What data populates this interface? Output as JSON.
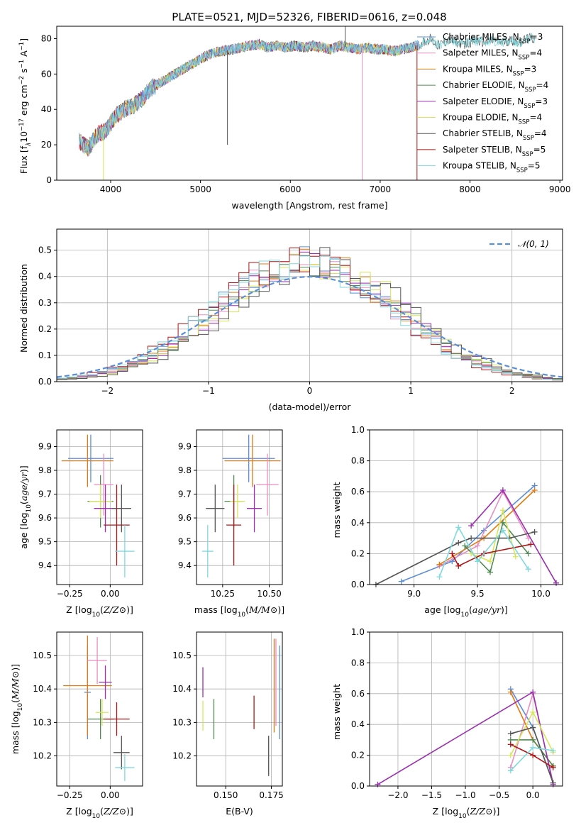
{
  "colors": {
    "Chabrier MILES": "#5b8ed8",
    "Salpeter MILES": "#e88fc1",
    "Kroupa MILES": "#e07b14",
    "Chabrier ELODIE": "#4f8a52",
    "Salpeter ELODIE": "#9b2fb0",
    "Kroupa ELODIE": "#d7e65a",
    "Chabrier STELIB": "#555555",
    "Salpeter STELIB": "#b01414",
    "Kroupa STELIB": "#7fd9de"
  },
  "chart_data": [
    {
      "id": "spectrum",
      "type": "line",
      "title": "PLATE=0521, MJD=52326, FIBERID=0616, z=0.048",
      "xlabel": "wavelength [Angstrom, rest frame]",
      "ylabel_parts": [
        "Flux [f",
        "λ",
        "10",
        "−17",
        " erg cm",
        "−2",
        " s",
        "−1",
        " A",
        "−1",
        "]"
      ],
      "xlim": [
        3400,
        9030
      ],
      "ylim": [
        0,
        87
      ],
      "xticks": [
        "4000",
        "5000",
        "6000",
        "7000",
        "8000",
        "9000"
      ],
      "yticks": [
        "0",
        "20",
        "40",
        "60",
        "80"
      ],
      "legend": [
        {
          "base": "Chabrier MILES, N",
          "sub": "SSP",
          "tail": "=3",
          "key": "Chabrier MILES"
        },
        {
          "base": "Salpeter MILES, N",
          "sub": "SSP",
          "tail": "=4",
          "key": "Salpeter MILES"
        },
        {
          "base": "Kroupa MILES, N",
          "sub": "SSP",
          "tail": "=3",
          "key": "Kroupa MILES"
        },
        {
          "base": "Chabrier ELODIE, N",
          "sub": "SSP",
          "tail": "=4",
          "key": "Chabrier ELODIE"
        },
        {
          "base": "Salpeter ELODIE, N",
          "sub": "SSP",
          "tail": "=3",
          "key": "Salpeter ELODIE"
        },
        {
          "base": "Kroupa ELODIE, N",
          "sub": "SSP",
          "tail": "=4",
          "key": "Kroupa ELODIE"
        },
        {
          "base": "Chabrier STELIB, N",
          "sub": "SSP",
          "tail": "=4",
          "key": "Chabrier STELIB"
        },
        {
          "base": "Salpeter STELIB, N",
          "sub": "SSP",
          "tail": "=5",
          "key": "Salpeter STELIB"
        },
        {
          "base": "Kroupa STELIB, N",
          "sub": "SSP",
          "tail": "=5",
          "key": "Kroupa STELIB"
        }
      ],
      "legend_position": "right",
      "continuum": [
        [
          3650,
          22
        ],
        [
          3750,
          18
        ],
        [
          3850,
          26
        ],
        [
          3950,
          28
        ],
        [
          4050,
          36
        ],
        [
          4150,
          40
        ],
        [
          4250,
          42
        ],
        [
          4350,
          46
        ],
        [
          4450,
          52
        ],
        [
          4550,
          55
        ],
        [
          4650,
          58
        ],
        [
          4750,
          61
        ],
        [
          4850,
          64
        ],
        [
          4950,
          67
        ],
        [
          5050,
          70
        ],
        [
          5150,
          72
        ],
        [
          5250,
          73
        ],
        [
          5350,
          74
        ],
        [
          5450,
          75
        ],
        [
          5550,
          76
        ],
        [
          5650,
          77
        ],
        [
          5750,
          75
        ],
        [
          5850,
          76
        ],
        [
          5950,
          75
        ],
        [
          6050,
          76
        ],
        [
          6150,
          75
        ],
        [
          6250,
          76
        ],
        [
          6350,
          75
        ],
        [
          6450,
          74
        ],
        [
          6550,
          76
        ],
        [
          6650,
          75
        ],
        [
          6750,
          74
        ],
        [
          6850,
          75
        ],
        [
          6950,
          74
        ],
        [
          7050,
          74
        ],
        [
          7150,
          73
        ],
        [
          7250,
          74
        ],
        [
          7350,
          75
        ],
        [
          7450,
          77
        ],
        [
          7550,
          80
        ],
        [
          7650,
          76
        ],
        [
          7750,
          79
        ],
        [
          7850,
          78
        ],
        [
          7950,
          77
        ],
        [
          8050,
          79
        ],
        [
          8150,
          78
        ],
        [
          8250,
          79
        ],
        [
          8350,
          78
        ],
        [
          8450,
          79
        ],
        [
          8550,
          78
        ],
        [
          8650,
          80
        ],
        [
          8750,
          80
        ]
      ],
      "drops": [
        {
          "x": 3920,
          "key": "Kroupa ELODIE",
          "y": 0
        },
        {
          "x": 5300,
          "key": "Chabrier STELIB",
          "y": 20
        },
        {
          "x": 6800,
          "key": "Salpeter MILES",
          "y": 0
        },
        {
          "x": 7410,
          "key": "Salpeter STELIB",
          "y": 0
        },
        {
          "x": 6610,
          "key": "Chabrier STELIB",
          "y": 87
        }
      ]
    },
    {
      "id": "residuals",
      "type": "histogram",
      "xlabel": "(data-model)/error",
      "ylabel": "Normed distribution",
      "xlim": [
        -2.5,
        2.5
      ],
      "ylim": [
        0,
        0.58
      ],
      "xticks": [
        "−2",
        "−1",
        "0",
        "1",
        "2"
      ],
      "yticks": [
        "0.0",
        "0.1",
        "0.2",
        "0.3",
        "0.4",
        "0.5"
      ],
      "legend": "𝒩(0, 1)",
      "legend_position": "top-right"
    },
    {
      "id": "age_vs_Z",
      "type": "errorbar",
      "xlabel": "Z [log10(Z/Z⊙)]",
      "ylabel": "age  [log10(age/yr)]",
      "xlim": [
        -0.33,
        0.2
      ],
      "ylim": [
        9.32,
        9.97
      ],
      "xticks": [
        -0.25,
        0.0
      ],
      "xticklabels": [
        "−0.25",
        "0.00"
      ],
      "yticks": [
        9.4,
        9.5,
        9.6,
        9.7,
        9.8,
        9.9
      ],
      "yticklabels": [
        "9.4",
        "9.5",
        "9.6",
        "9.7",
        "9.8",
        "9.9"
      ],
      "points": [
        {
          "key": "Chabrier MILES",
          "x": -0.12,
          "y": 9.85,
          "xerr": 0.14,
          "yerr": 0.1
        },
        {
          "key": "Kroupa MILES",
          "x": -0.14,
          "y": 9.84,
          "xerr": 0.16,
          "yerr": 0.11
        },
        {
          "key": "Salpeter MILES",
          "x": -0.04,
          "y": 9.74,
          "xerr": 0.06,
          "yerr": 0.13
        },
        {
          "key": "Chabrier ELODIE",
          "x": -0.06,
          "y": 9.67,
          "xerr": 0.08,
          "yerr": 0.11
        },
        {
          "key": "Kroupa ELODIE",
          "x": -0.06,
          "y": 9.67,
          "xerr": 0.07,
          "yerr": 0.07
        },
        {
          "key": "Salpeter ELODIE",
          "x": -0.03,
          "y": 9.64,
          "xerr": 0.07,
          "yerr": 0.1
        },
        {
          "key": "Chabrier STELIB",
          "x": 0.07,
          "y": 9.64,
          "xerr": 0.06,
          "yerr": 0.1
        },
        {
          "key": "Salpeter STELIB",
          "x": 0.04,
          "y": 9.57,
          "xerr": 0.08,
          "yerr": 0.17
        },
        {
          "key": "Kroupa STELIB",
          "x": 0.09,
          "y": 9.46,
          "xerr": 0.06,
          "yerr": 0.11
        }
      ]
    },
    {
      "id": "age_vs_mass",
      "type": "errorbar",
      "xlabel": "mass [log10(M/M⊙)]",
      "ylabel": "",
      "xlim": [
        10.11,
        10.57
      ],
      "ylim": [
        9.32,
        9.97
      ],
      "xticks": [
        10.25,
        10.5
      ],
      "xticklabels": [
        "10.25",
        "10.50"
      ],
      "yticks": [
        9.4,
        9.5,
        9.6,
        9.7,
        9.8,
        9.9
      ],
      "yticklabels": [
        "9.4",
        "9.5",
        "9.6",
        "9.7",
        "9.8",
        "9.9"
      ],
      "points": [
        {
          "key": "Chabrier MILES",
          "x": 10.39,
          "y": 9.85,
          "xerr": 0.14,
          "yerr": 0.1
        },
        {
          "key": "Kroupa MILES",
          "x": 10.41,
          "y": 9.84,
          "xerr": 0.15,
          "yerr": 0.11
        },
        {
          "key": "Salpeter MILES",
          "x": 10.49,
          "y": 9.74,
          "xerr": 0.06,
          "yerr": 0.13
        },
        {
          "key": "Chabrier ELODIE",
          "x": 10.31,
          "y": 9.67,
          "xerr": 0.05,
          "yerr": 0.11
        },
        {
          "key": "Kroupa ELODIE",
          "x": 10.33,
          "y": 9.67,
          "xerr": 0.04,
          "yerr": 0.07
        },
        {
          "key": "Salpeter ELODIE",
          "x": 10.42,
          "y": 9.64,
          "xerr": 0.04,
          "yerr": 0.1
        },
        {
          "key": "Chabrier STELIB",
          "x": 10.21,
          "y": 9.64,
          "xerr": 0.05,
          "yerr": 0.1
        },
        {
          "key": "Salpeter STELIB",
          "x": 10.31,
          "y": 9.57,
          "xerr": 0.04,
          "yerr": 0.17
        },
        {
          "key": "Kroupa STELIB",
          "x": 10.17,
          "y": 9.46,
          "xerr": 0.03,
          "yerr": 0.11
        }
      ]
    },
    {
      "id": "massweight_vs_age",
      "type": "line",
      "xlabel": "age  [log10(age/yr)]",
      "ylabel": "mass weight",
      "xlim": [
        8.65,
        10.17
      ],
      "ylim": [
        0,
        1
      ],
      "xticks": [
        9.0,
        9.5,
        10.0
      ],
      "xticklabels": [
        "9.0",
        "9.5",
        "10.0"
      ],
      "yticks": [
        0,
        0.2,
        0.4,
        0.6,
        0.8,
        1.0
      ],
      "yticklabels": [
        "0.0",
        "0.2",
        "0.4",
        "0.6",
        "0.8",
        "1.0"
      ],
      "series": [
        {
          "key": "Chabrier MILES",
          "x": [
            8.9,
            9.3,
            9.55,
            9.95
          ],
          "y": [
            0.02,
            0.15,
            0.35,
            0.64
          ]
        },
        {
          "key": "Salpeter MILES",
          "x": [
            9.2,
            9.5,
            9.7,
            9.9
          ],
          "y": [
            0.12,
            0.25,
            0.6,
            0.3
          ]
        },
        {
          "key": "Kroupa MILES",
          "x": [
            9.2,
            9.55,
            9.95
          ],
          "y": [
            0.13,
            0.3,
            0.61
          ]
        },
        {
          "key": "Chabrier ELODIE",
          "x": [
            9.4,
            9.6,
            9.7,
            9.9
          ],
          "y": [
            0.25,
            0.08,
            0.4,
            0.2
          ]
        },
        {
          "key": "Salpeter ELODIE",
          "x": [
            9.45,
            9.7,
            10.12
          ],
          "y": [
            0.38,
            0.61,
            0.01
          ]
        },
        {
          "key": "Kroupa ELODIE",
          "x": [
            9.45,
            9.6,
            9.7,
            9.8
          ],
          "y": [
            0.2,
            0.15,
            0.48,
            0.18
          ]
        },
        {
          "key": "Chabrier STELIB",
          "x": [
            8.7,
            9.35,
            9.45,
            9.75,
            9.95
          ],
          "y": [
            0.0,
            0.27,
            0.3,
            0.3,
            0.34
          ]
        },
        {
          "key": "Salpeter STELIB",
          "x": [
            9.3,
            9.35,
            9.55,
            9.92
          ],
          "y": [
            0.2,
            0.12,
            0.2,
            0.26
          ]
        },
        {
          "key": "Kroupa STELIB",
          "x": [
            9.2,
            9.35,
            9.5,
            9.7,
            9.9
          ],
          "y": [
            0.05,
            0.37,
            0.15,
            0.35,
            0.1
          ]
        }
      ]
    },
    {
      "id": "mass_vs_Z",
      "type": "errorbar",
      "xlabel": "Z [log10(Z/Z⊙)]",
      "ylabel": "mass [log10(M/M⊙)]",
      "xlim": [
        -0.33,
        0.2
      ],
      "ylim": [
        10.11,
        10.57
      ],
      "xticks": [
        -0.25,
        0.0
      ],
      "xticklabels": [
        "−0.25",
        "0.00"
      ],
      "yticks": [
        10.2,
        10.3,
        10.4,
        10.5
      ],
      "yticklabels": [
        "10.2",
        "10.3",
        "10.4",
        "10.5"
      ],
      "points": [
        {
          "key": "Chabrier MILES",
          "x": -0.14,
          "y": 10.39,
          "xerr": 0.02,
          "yerr": 0.14
        },
        {
          "key": "Kroupa MILES",
          "x": -0.14,
          "y": 10.41,
          "xerr": 0.15,
          "yerr": 0.15
        },
        {
          "key": "Salpeter MILES",
          "x": -0.08,
          "y": 10.485,
          "xerr": 0.06,
          "yerr": 0.07
        },
        {
          "key": "Chabrier ELODIE",
          "x": -0.06,
          "y": 10.31,
          "xerr": 0.08,
          "yerr": 0.06
        },
        {
          "key": "Kroupa ELODIE",
          "x": -0.05,
          "y": 10.33,
          "xerr": 0.04,
          "yerr": 0.04
        },
        {
          "key": "Salpeter ELODIE",
          "x": -0.03,
          "y": 10.42,
          "xerr": 0.04,
          "yerr": 0.05
        },
        {
          "key": "Chabrier STELIB",
          "x": 0.07,
          "y": 10.21,
          "xerr": 0.05,
          "yerr": 0.05
        },
        {
          "key": "Salpeter STELIB",
          "x": 0.04,
          "y": 10.31,
          "xerr": 0.08,
          "yerr": 0.05
        },
        {
          "key": "Kroupa STELIB",
          "x": 0.09,
          "y": 10.165,
          "xerr": 0.06,
          "yerr": 0.04
        }
      ]
    },
    {
      "id": "mass_vs_EBV",
      "type": "errorbar",
      "xlabel": "E(B-V)",
      "ylabel": "",
      "xlim": [
        0.134,
        0.181
      ],
      "ylim": [
        10.11,
        10.57
      ],
      "xticks": [
        0.15,
        0.175
      ],
      "xticklabels": [
        "0.150",
        "0.175"
      ],
      "yticks": [
        10.2,
        10.3,
        10.4,
        10.5
      ],
      "yticklabels": [
        "10.2",
        "10.3",
        "10.4",
        "10.5"
      ],
      "points": [
        {
          "key": "Salpeter ELODIE",
          "x": 0.1375,
          "y": 10.42,
          "xerr": 0,
          "yerr": 0.045
        },
        {
          "key": "Kroupa ELODIE",
          "x": 0.1375,
          "y": 10.32,
          "xerr": 0,
          "yerr": 0.045
        },
        {
          "key": "Chabrier ELODIE",
          "x": 0.1435,
          "y": 10.31,
          "xerr": 0,
          "yerr": 0.06
        },
        {
          "key": "Salpeter STELIB",
          "x": 0.1655,
          "y": 10.33,
          "xerr": 0,
          "yerr": 0.05
        },
        {
          "key": "Chabrier STELIB",
          "x": 0.1735,
          "y": 10.2,
          "xerr": 0,
          "yerr": 0.06
        },
        {
          "key": "Kroupa MILES",
          "x": 0.1765,
          "y": 10.41,
          "xerr": 0,
          "yerr": 0.14
        },
        {
          "key": "Salpeter MILES",
          "x": 0.1775,
          "y": 10.42,
          "xerr": 0,
          "yerr": 0.13
        },
        {
          "key": "Chabrier MILES",
          "x": 0.1795,
          "y": 10.39,
          "xerr": 0,
          "yerr": 0.14
        }
      ]
    },
    {
      "id": "massweight_vs_Z",
      "type": "line",
      "xlabel": "Z [log10(Z/Z⊙)]",
      "ylabel": "mass weight",
      "xlim": [
        -2.42,
        0.44
      ],
      "ylim": [
        0,
        1
      ],
      "xticks": [
        -2.0,
        -1.5,
        -1.0,
        -0.5,
        0.0
      ],
      "xticklabels": [
        "−2.0",
        "−1.5",
        "−1.0",
        "−0.5",
        "0.0"
      ],
      "yticks": [
        0,
        0.2,
        0.4,
        0.6,
        0.8,
        1.0
      ],
      "yticklabels": [
        "0.0",
        "0.2",
        "0.4",
        "0.6",
        "0.8",
        "1.0"
      ],
      "series": [
        {
          "key": "Chabrier MILES",
          "x": [
            -0.33,
            0.0,
            0.3
          ],
          "y": [
            0.63,
            0.38,
            0.02
          ]
        },
        {
          "key": "Salpeter MILES",
          "x": [
            -0.33,
            0.0,
            0.3
          ],
          "y": [
            0.12,
            0.6,
            0.02
          ]
        },
        {
          "key": "Kroupa MILES",
          "x": [
            -0.33,
            0.0,
            0.3
          ],
          "y": [
            0.61,
            0.3,
            0.13
          ]
        },
        {
          "key": "Chabrier ELODIE",
          "x": [
            -0.33,
            0.0,
            0.3
          ],
          "y": [
            0.3,
            0.3,
            0.13
          ]
        },
        {
          "key": "Salpeter ELODIE",
          "x": [
            -2.3,
            0.0,
            0.3
          ],
          "y": [
            0.01,
            0.61,
            0.01
          ]
        },
        {
          "key": "Kroupa ELODIE",
          "x": [
            -0.33,
            0.0,
            0.3
          ],
          "y": [
            0.2,
            0.48,
            0.22
          ]
        },
        {
          "key": "Chabrier STELIB",
          "x": [
            -0.33,
            0.0,
            0.3
          ],
          "y": [
            0.34,
            0.38,
            0.02
          ]
        },
        {
          "key": "Salpeter STELIB",
          "x": [
            -0.33,
            0.0,
            0.3
          ],
          "y": [
            0.27,
            0.2,
            0.12
          ]
        },
        {
          "key": "Kroupa STELIB",
          "x": [
            -0.33,
            0.0,
            0.3
          ],
          "y": [
            0.1,
            0.25,
            0.23
          ]
        }
      ]
    }
  ]
}
